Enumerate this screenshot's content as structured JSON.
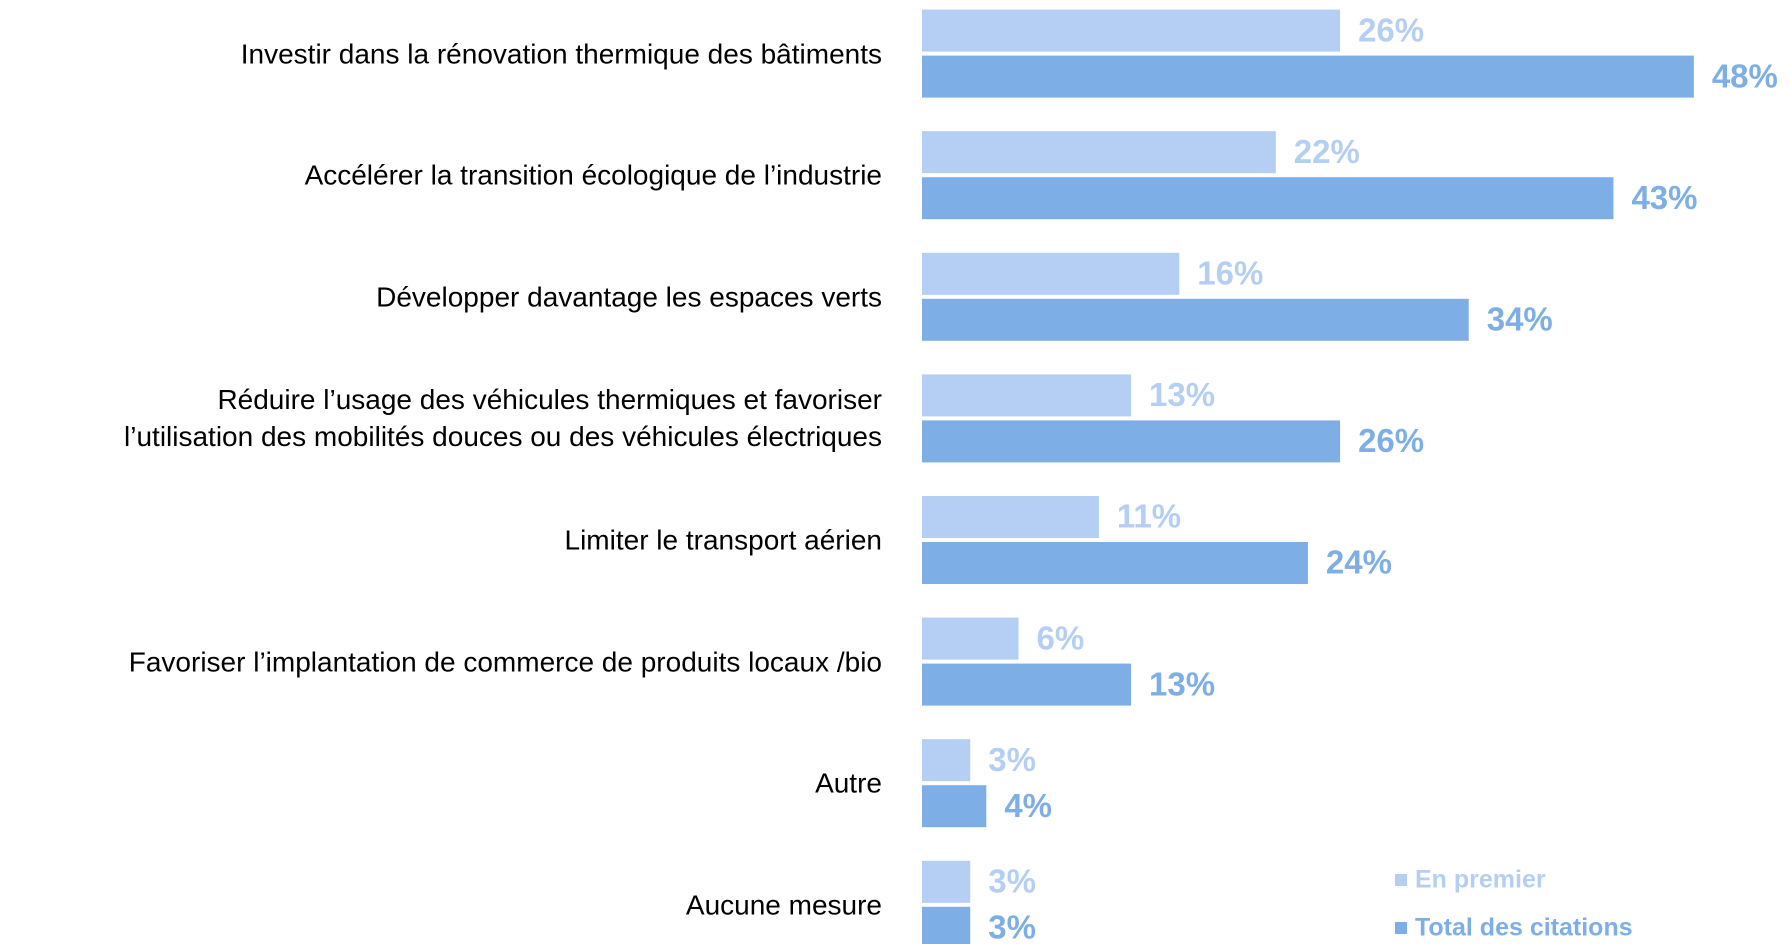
{
  "chart_data": {
    "type": "bar",
    "orientation": "horizontal",
    "categories": [
      "Investir dans la rénovation thermique des bâtiments",
      "Accélérer la transition écologique de l’industrie",
      "Développer davantage les espaces verts",
      "Réduire l’usage des véhicules thermiques et favoriser\nl’utilisation des mobilités douces ou des véhicules électriques",
      "Limiter le transport aérien",
      "Favoriser l’implantation de commerce de produits locaux /bio",
      "Autre",
      "Aucune mesure"
    ],
    "series": [
      {
        "name": "En premier",
        "color": "#b4cff3",
        "values": [
          26,
          22,
          16,
          13,
          11,
          6,
          3,
          3
        ],
        "value_labels": [
          "26%",
          "22%",
          "16%",
          "13%",
          "11%",
          "6%",
          "3%",
          "3%"
        ]
      },
      {
        "name": "Total des citations",
        "color": "#7eaee6",
        "values": [
          48,
          43,
          34,
          26,
          24,
          13,
          4,
          3
        ],
        "value_labels": [
          "48%",
          "43%",
          "34%",
          "26%",
          "24%",
          "13%",
          "4%",
          "3%"
        ]
      }
    ],
    "legend": "bottom-right"
  }
}
